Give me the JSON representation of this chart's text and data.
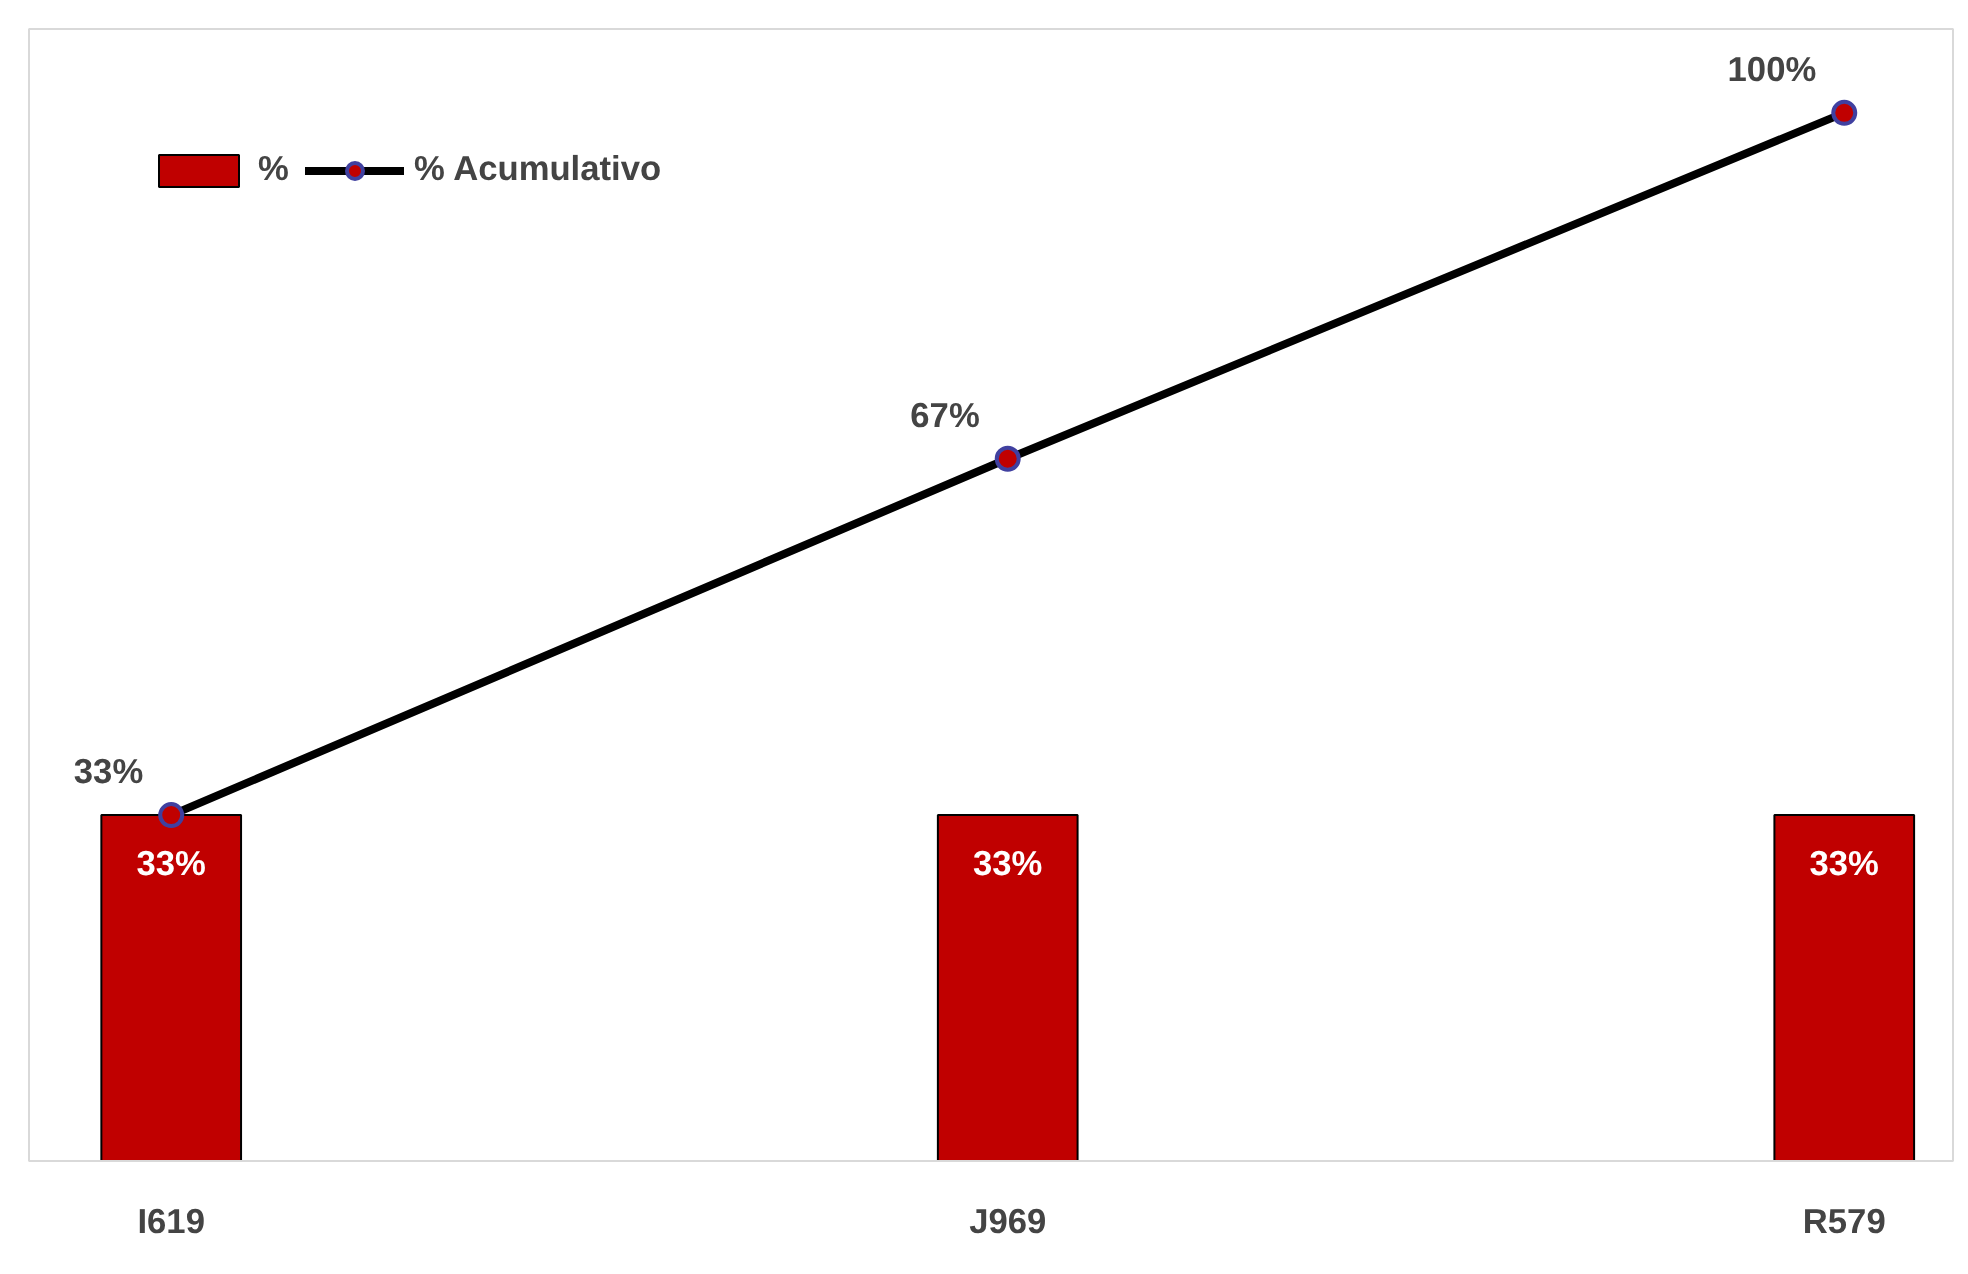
{
  "chart_data": {
    "type": "bar",
    "categories": [
      "I619",
      "J969",
      "R579"
    ],
    "series": [
      {
        "name": "%",
        "color": "#c00000",
        "values": [
          33,
          33,
          33
        ],
        "value_labels": [
          "33%",
          "33%",
          "33%"
        ]
      },
      {
        "name": "% Acumulativo",
        "type": "line",
        "color": "#000000",
        "marker": "circle",
        "values": [
          33,
          67,
          100
        ],
        "value_labels": [
          "33%",
          "67%",
          "100%"
        ]
      }
    ],
    "ylim": [
      0,
      108
    ],
    "tick_labels": "x",
    "grid": false,
    "legend": "top left"
  }
}
